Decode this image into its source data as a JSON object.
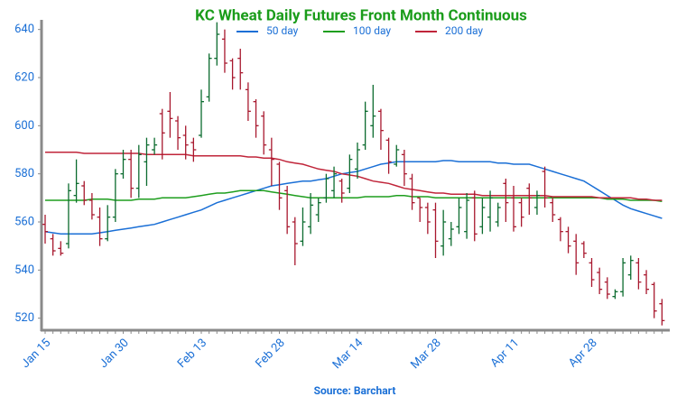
{
  "chart_data": {
    "type": "ohlc",
    "title": "KC Wheat Daily Futures Front Month Continuous",
    "source": "Source: Barchart",
    "categories": [
      "Jan 15",
      null,
      null,
      null,
      null,
      null,
      null,
      null,
      null,
      null,
      "Jan 30",
      null,
      null,
      null,
      null,
      null,
      null,
      null,
      null,
      null,
      "Feb 13",
      null,
      null,
      null,
      null,
      null,
      null,
      null,
      null,
      null,
      "Feb 28",
      null,
      null,
      null,
      null,
      null,
      null,
      null,
      null,
      null,
      "Mar 14",
      null,
      null,
      null,
      null,
      null,
      null,
      null,
      null,
      null,
      "Mar 28",
      null,
      null,
      null,
      null,
      null,
      null,
      null,
      null,
      null,
      "Apr 11",
      null,
      null,
      null,
      null,
      null,
      null,
      null,
      null,
      null,
      "Apr 28",
      null,
      null,
      null,
      null,
      null,
      null,
      null,
      null,
      null
    ],
    "open": [
      559,
      553,
      549,
      551,
      571,
      575,
      569,
      562,
      553,
      562,
      580,
      586,
      574,
      585,
      590,
      605,
      606,
      602,
      596,
      593,
      596,
      612,
      628,
      636,
      627,
      628,
      615,
      610,
      604,
      590,
      584,
      573,
      560,
      552,
      558,
      563,
      570,
      573,
      577,
      574,
      582,
      592,
      600,
      606,
      594,
      584,
      588,
      578,
      570,
      566,
      565,
      550,
      553,
      558,
      556,
      570,
      558,
      562,
      560,
      576,
      570,
      568,
      574,
      566,
      581,
      568,
      561,
      556,
      552,
      551,
      543,
      539,
      535,
      529,
      531,
      538,
      543,
      538,
      534,
      526
    ],
    "high": [
      563,
      555,
      552,
      576,
      586,
      577,
      572,
      566,
      567,
      582,
      590,
      590,
      592,
      595,
      595,
      607,
      614,
      604,
      600,
      595,
      615,
      630,
      643,
      640,
      628,
      632,
      618,
      611,
      606,
      595,
      585,
      575,
      562,
      566,
      572,
      570,
      580,
      583,
      578,
      588,
      593,
      610,
      617,
      607,
      595,
      592,
      590,
      580,
      570,
      568,
      568,
      565,
      560,
      570,
      572,
      573,
      570,
      573,
      568,
      578,
      575,
      570,
      576,
      573,
      583,
      570,
      562,
      558,
      555,
      552,
      545,
      541,
      537,
      532,
      545,
      546,
      545,
      540,
      535,
      528
    ],
    "low": [
      551,
      546,
      546,
      549,
      568,
      567,
      561,
      550,
      552,
      560,
      578,
      570,
      570,
      575,
      588,
      586,
      595,
      590,
      586,
      585,
      595,
      610,
      625,
      622,
      615,
      615,
      602,
      595,
      588,
      575,
      565,
      555,
      542,
      550,
      555,
      560,
      568,
      570,
      568,
      572,
      578,
      590,
      595,
      590,
      580,
      583,
      575,
      565,
      560,
      555,
      545,
      546,
      550,
      555,
      553,
      552,
      555,
      556,
      558,
      560,
      556,
      558,
      563,
      563,
      566,
      560,
      552,
      547,
      538,
      545,
      533,
      530,
      528,
      528,
      529,
      536,
      532,
      530,
      520,
      517
    ],
    "close": [
      556,
      548,
      547,
      573,
      576,
      569,
      563,
      553,
      562,
      580,
      586,
      574,
      588,
      592,
      592,
      597,
      603,
      595,
      592,
      590,
      610,
      628,
      638,
      626,
      620,
      622,
      606,
      600,
      592,
      586,
      570,
      558,
      551,
      560,
      567,
      568,
      578,
      580,
      572,
      586,
      590,
      606,
      604,
      598,
      585,
      590,
      580,
      568,
      566,
      560,
      552,
      560,
      557,
      566,
      569,
      555,
      566,
      570,
      566,
      568,
      558,
      562,
      570,
      571,
      570,
      563,
      556,
      550,
      543,
      547,
      536,
      532,
      530,
      531,
      543,
      544,
      535,
      532,
      523,
      519
    ],
    "up_color": "#0b6b2e",
    "down_color": "#a8182e",
    "series": [
      {
        "name": "50 day",
        "color": "#1a6fd6",
        "values": [
          556,
          555.5,
          555,
          555,
          555,
          555,
          555,
          555.5,
          556,
          556.5,
          557,
          557.5,
          558,
          558.5,
          559,
          560,
          561,
          562,
          563,
          564,
          565,
          566.5,
          568,
          569,
          570,
          571,
          572,
          573,
          574,
          575,
          575.5,
          576,
          576.5,
          577,
          577,
          577.5,
          578,
          579,
          580,
          580.5,
          581,
          582,
          583,
          584,
          584.5,
          585,
          585,
          585,
          585,
          585,
          585,
          585.5,
          585.5,
          585,
          585,
          585,
          585,
          585,
          584.5,
          584.5,
          584,
          584,
          584,
          583,
          582,
          581,
          580,
          579,
          578,
          577,
          575,
          573,
          571,
          569,
          567,
          565.5,
          564.5,
          563.5,
          562.5,
          561.5
        ]
      },
      {
        "name": "100 day",
        "color": "#1e9e1e",
        "values": [
          569,
          569,
          569,
          569,
          569,
          569,
          569.5,
          569.5,
          569.5,
          569,
          569,
          569,
          569.5,
          569.5,
          569.5,
          570,
          570,
          570,
          570,
          570.5,
          571,
          571.5,
          572,
          572,
          572.5,
          573,
          573,
          573,
          573,
          572.5,
          572,
          571.5,
          571,
          570.5,
          570,
          570,
          570,
          570,
          570,
          570,
          570,
          570.5,
          570.5,
          570.5,
          570.5,
          571,
          571,
          570.5,
          570.5,
          570.5,
          570,
          570,
          570,
          570,
          570,
          570,
          570,
          570,
          570,
          570,
          570,
          570,
          570,
          570,
          570,
          570,
          570,
          570,
          570,
          570,
          570,
          570,
          569.5,
          569.5,
          569.5,
          569,
          569,
          569,
          569,
          568.5
        ]
      },
      {
        "name": "200 day",
        "color": "#c0253a",
        "values": [
          589,
          589,
          589,
          589,
          589,
          588.5,
          588.5,
          588.5,
          588.5,
          588.5,
          588.5,
          588.5,
          588.5,
          588,
          588,
          588,
          588,
          588,
          588,
          587.5,
          587.5,
          587.5,
          587.5,
          587.5,
          587.5,
          587.5,
          587,
          587,
          586.5,
          586.5,
          586,
          585,
          584.5,
          584,
          583,
          582,
          581.5,
          581,
          580,
          579.5,
          579,
          578,
          577,
          576.5,
          576,
          575,
          574,
          573.5,
          573,
          572.5,
          572,
          572,
          571.5,
          571.5,
          571.5,
          571.5,
          571,
          571,
          571,
          571,
          571,
          571,
          571,
          571,
          571,
          570.5,
          570.5,
          570.5,
          570.5,
          570.5,
          570.5,
          570,
          570,
          570,
          570,
          570,
          569.5,
          569.5,
          569,
          569
        ]
      }
    ],
    "ylim": [
      515,
      644
    ],
    "yticks": [
      520,
      540,
      560,
      580,
      600,
      620,
      640
    ]
  }
}
